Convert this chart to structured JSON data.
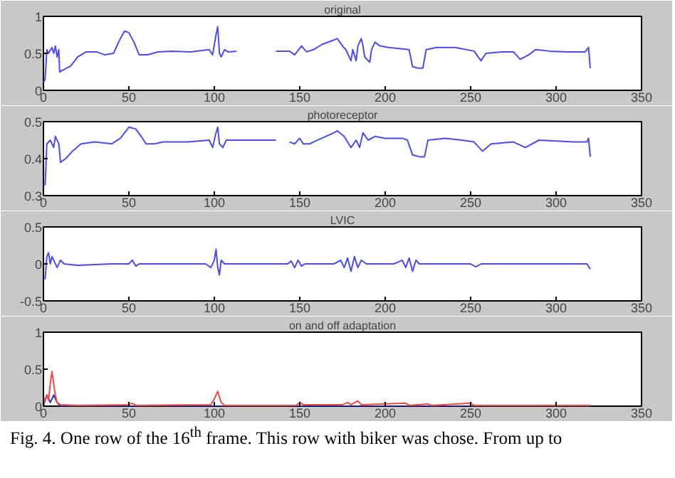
{
  "chart_data": [
    {
      "type": "line",
      "title": "original",
      "xlim": [
        0,
        350
      ],
      "ylim": [
        0,
        1
      ],
      "xticks": [
        0,
        50,
        100,
        150,
        200,
        250,
        300,
        350
      ],
      "yticks": [
        0,
        0.5,
        1
      ],
      "grid": false,
      "series": [
        {
          "color": "#4b4bf0",
          "x": [
            0,
            1,
            2,
            3,
            5,
            6,
            7,
            8,
            9,
            9.5,
            12,
            16,
            20,
            25,
            31,
            36,
            41,
            45,
            47.5,
            50,
            53,
            56,
            61,
            67,
            75,
            86,
            97,
            99,
            101,
            102,
            103,
            104,
            106,
            108,
            113,
            120,
            136,
            144,
            147,
            151,
            154,
            158,
            163,
            170,
            172,
            175,
            177,
            180,
            181,
            183,
            184,
            186,
            187,
            188,
            191,
            192,
            194,
            197,
            202,
            210,
            214,
            216,
            219,
            222,
            224,
            230,
            241,
            252,
            256,
            259,
            268,
            275,
            279,
            284,
            288,
            296,
            307,
            317,
            319,
            320
          ],
          "values": [
            0.1,
            0.15,
            0.55,
            0.5,
            0.58,
            0.5,
            0.6,
            0.45,
            0.55,
            0.25,
            0.28,
            0.33,
            0.45,
            0.52,
            0.52,
            0.48,
            0.5,
            0.7,
            0.8,
            0.78,
            0.65,
            0.48,
            0.48,
            0.52,
            0.53,
            0.52,
            0.55,
            0.48,
            0.75,
            0.86,
            0.5,
            0.45,
            0.55,
            0.52,
            0.53,
            null,
            0.53,
            0.53,
            0.48,
            0.6,
            0.52,
            0.55,
            0.62,
            0.68,
            0.7,
            0.6,
            0.55,
            0.4,
            0.55,
            0.4,
            0.6,
            0.7,
            0.6,
            0.45,
            0.38,
            0.55,
            0.65,
            0.6,
            0.58,
            0.56,
            0.55,
            0.32,
            0.3,
            0.3,
            0.55,
            0.58,
            0.58,
            0.53,
            0.4,
            0.5,
            0.52,
            0.52,
            0.42,
            0.48,
            0.55,
            0.53,
            0.52,
            0.52,
            0.58,
            0.3
          ]
        }
      ]
    },
    {
      "type": "line",
      "title": "photoreceptor",
      "xlim": [
        0,
        350
      ],
      "ylim": [
        0.3,
        0.5
      ],
      "xticks": [
        0,
        50,
        100,
        150,
        200,
        250,
        300,
        350
      ],
      "yticks": [
        0.3,
        0.4,
        0.5
      ],
      "grid": false,
      "series": [
        {
          "color": "#4b4bf0",
          "x": [
            0,
            1,
            2,
            4,
            6,
            7,
            9,
            10,
            13,
            17,
            22,
            30,
            40,
            45,
            50,
            54,
            58,
            60,
            65,
            70,
            85,
            97,
            99,
            101,
            102,
            103,
            105,
            107,
            120,
            136,
            140,
            144,
            147,
            150,
            152,
            156,
            158,
            170,
            172,
            176,
            180,
            183,
            185,
            187,
            190,
            194,
            200,
            210,
            213,
            216,
            220,
            223,
            225,
            235,
            245,
            252,
            257,
            262,
            275,
            282,
            290,
            310,
            318,
            319,
            320
          ],
          "values": [
            0.33,
            0.33,
            0.44,
            0.45,
            0.43,
            0.46,
            0.44,
            0.39,
            0.4,
            0.42,
            0.44,
            0.445,
            0.44,
            0.455,
            0.485,
            0.48,
            0.455,
            0.44,
            0.44,
            0.445,
            0.445,
            0.45,
            0.43,
            0.47,
            0.485,
            0.44,
            0.43,
            0.45,
            0.45,
            0.45,
            null,
            0.445,
            0.44,
            0.455,
            0.44,
            0.44,
            0.445,
            0.47,
            0.475,
            0.46,
            0.43,
            0.45,
            0.43,
            0.47,
            0.45,
            0.46,
            0.455,
            0.455,
            0.45,
            0.41,
            0.405,
            0.405,
            0.45,
            0.455,
            0.45,
            0.445,
            0.42,
            0.44,
            0.445,
            0.43,
            0.45,
            0.445,
            0.445,
            0.455,
            0.405
          ]
        }
      ]
    },
    {
      "type": "line",
      "title": "LVIC",
      "xlim": [
        0,
        350
      ],
      "ylim": [
        -0.5,
        0.5
      ],
      "xticks": [
        0,
        50,
        100,
        150,
        200,
        250,
        300,
        350
      ],
      "yticks": [
        -0.5,
        0,
        0.5
      ],
      "grid": false,
      "series": [
        {
          "color": "#4b4bf0",
          "x": [
            0,
            1,
            2,
            3,
            4,
            5,
            6,
            8,
            10,
            12,
            20,
            40,
            50,
            52,
            54,
            56,
            95,
            98,
            100,
            101,
            102,
            103,
            104,
            106,
            143,
            145,
            147,
            149,
            151,
            153,
            170,
            174,
            176,
            178,
            180,
            182,
            184,
            186,
            189,
            205,
            210,
            212,
            214,
            216,
            218,
            220,
            250,
            253,
            256,
            300,
            318,
            320
          ],
          "values": [
            -0.2,
            -0.2,
            0.1,
            0.15,
            0,
            0.1,
            0.05,
            -0.05,
            0.05,
            0,
            -0.02,
            0,
            0,
            0.05,
            -0.03,
            0,
            0,
            -0.05,
            0.05,
            0.2,
            -0.05,
            -0.15,
            0.05,
            0,
            0,
            0.04,
            -0.05,
            0.05,
            -0.03,
            0,
            0,
            0.05,
            -0.05,
            0.08,
            -0.1,
            0.1,
            -0.05,
            0.05,
            0,
            0,
            0.05,
            -0.05,
            0.08,
            -0.1,
            0.05,
            0,
            0,
            -0.04,
            0,
            0,
            0,
            -0.07
          ]
        }
      ]
    },
    {
      "type": "line",
      "title": "on and off adaptation",
      "xlim": [
        0,
        350
      ],
      "ylim": [
        0,
        1
      ],
      "xticks": [
        0,
        50,
        100,
        150,
        200,
        250,
        300,
        350
      ],
      "yticks": [
        0,
        0.5,
        1
      ],
      "grid": false,
      "annotations": [
        "Fig. 4. One row of the 16$^{th}$ frame. This row with biker was chose. From up to"
      ],
      "series": [
        {
          "color": "#3030c0",
          "x": [
            0,
            2,
            4,
            6,
            8,
            10,
            20,
            320
          ],
          "values": [
            0,
            0.15,
            0.05,
            0.15,
            0.05,
            0,
            0,
            0
          ]
        },
        {
          "color": "#f04848",
          "x": [
            0,
            1,
            2,
            3,
            4,
            5,
            6,
            7,
            8,
            10,
            20,
            50,
            52,
            54,
            98,
            100,
            102,
            104,
            106,
            148,
            150,
            152,
            175,
            178,
            180,
            184,
            186,
            212,
            214,
            225,
            227,
            250,
            252,
            320
          ],
          "values": [
            0,
            0.1,
            0.15,
            0.08,
            0.3,
            0.47,
            0.3,
            0.15,
            0.05,
            0.02,
            0.01,
            0.02,
            0.04,
            0.01,
            0.02,
            0.1,
            0.2,
            0.05,
            0.01,
            0.01,
            0.05,
            0.02,
            0.02,
            0.05,
            0.02,
            0.07,
            0.02,
            0.04,
            0.01,
            0.03,
            0.01,
            0.04,
            0.01,
            0.01
          ]
        }
      ]
    }
  ]
}
